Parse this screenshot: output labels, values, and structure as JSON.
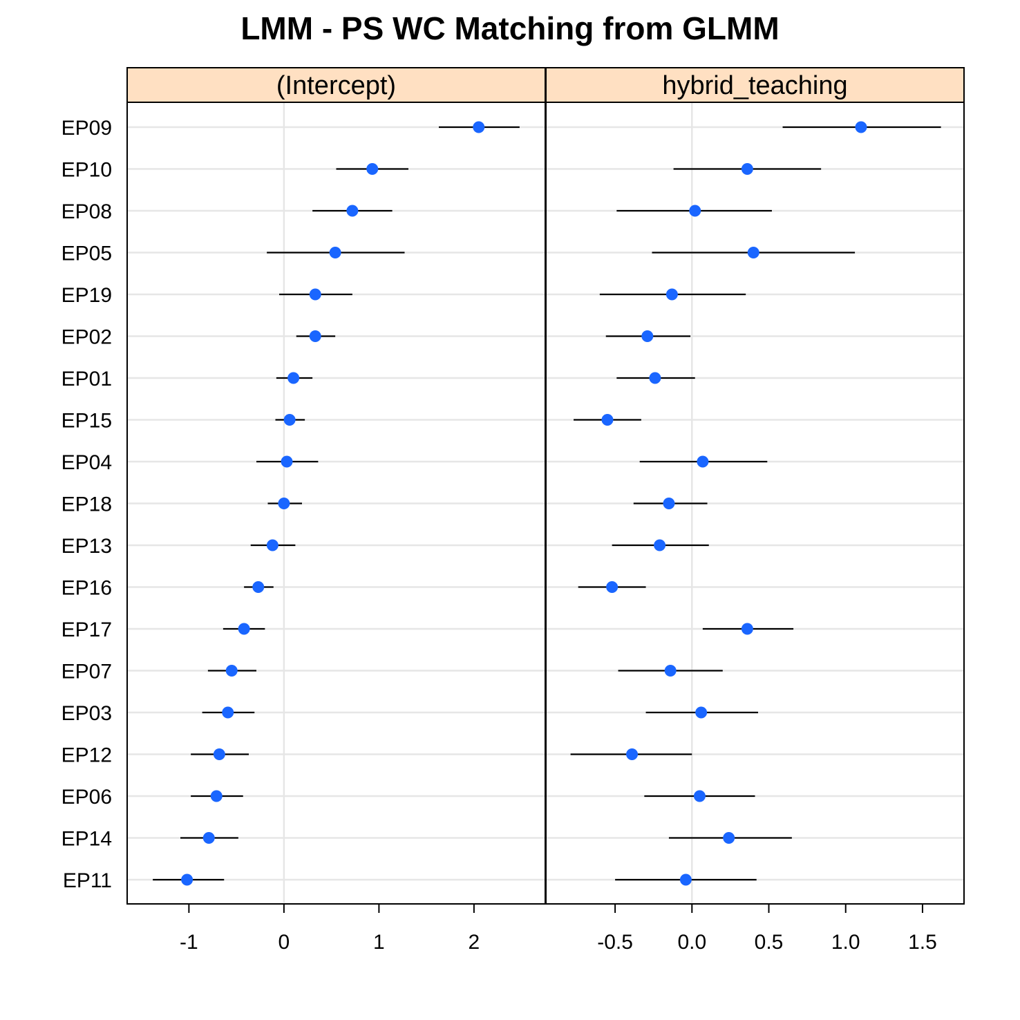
{
  "chart_data": {
    "type": "scatter",
    "subtype": "dotplot-with-error-bars",
    "title": "LMM - PS WC Matching from GLMM",
    "categories": [
      "EP09",
      "EP10",
      "EP08",
      "EP05",
      "EP19",
      "EP02",
      "EP01",
      "EP15",
      "EP04",
      "EP18",
      "EP13",
      "EP16",
      "EP17",
      "EP07",
      "EP03",
      "EP12",
      "EP06",
      "EP14",
      "EP11"
    ],
    "colors": {
      "point": "#1a66ff",
      "strip": "#ffe0c2",
      "grid": "#e6e6e6",
      "errorbar": "#000000"
    },
    "grid": true,
    "panels": [
      {
        "name": "(Intercept)",
        "xlim": [
          -1.65,
          2.75
        ],
        "ticks": [
          -1,
          0,
          1,
          2
        ],
        "tick_labels": [
          "-1",
          "0",
          "1",
          "2"
        ],
        "values": [
          2.05,
          0.93,
          0.72,
          0.54,
          0.33,
          0.33,
          0.1,
          0.06,
          0.03,
          0.0,
          -0.12,
          -0.27,
          -0.42,
          -0.55,
          -0.59,
          -0.68,
          -0.71,
          -0.79,
          -1.02
        ],
        "lower": [
          1.63,
          0.55,
          0.3,
          -0.18,
          -0.05,
          0.13,
          -0.08,
          -0.09,
          -0.29,
          -0.17,
          -0.35,
          -0.42,
          -0.64,
          -0.8,
          -0.86,
          -0.98,
          -0.98,
          -1.09,
          -1.38
        ],
        "upper": [
          2.48,
          1.31,
          1.14,
          1.27,
          0.72,
          0.54,
          0.3,
          0.22,
          0.36,
          0.19,
          0.12,
          -0.11,
          -0.2,
          -0.29,
          -0.31,
          -0.37,
          -0.43,
          -0.48,
          -0.63
        ]
      },
      {
        "name": "hybrid_teaching",
        "xlim": [
          -0.95,
          1.77
        ],
        "ticks": [
          -0.5,
          0.0,
          0.5,
          1.0,
          1.5
        ],
        "tick_labels": [
          "-0.5",
          "0.0",
          "0.5",
          "1.0",
          "1.5"
        ],
        "values": [
          1.1,
          0.36,
          0.02,
          0.4,
          -0.13,
          -0.29,
          -0.24,
          -0.55,
          0.07,
          -0.15,
          -0.21,
          -0.52,
          0.36,
          -0.14,
          0.06,
          -0.39,
          0.05,
          0.24,
          -0.04
        ],
        "lower": [
          0.59,
          -0.12,
          -0.49,
          -0.26,
          -0.6,
          -0.56,
          -0.49,
          -0.77,
          -0.34,
          -0.38,
          -0.52,
          -0.74,
          0.07,
          -0.48,
          -0.3,
          -0.79,
          -0.31,
          -0.15,
          -0.5
        ],
        "upper": [
          1.62,
          0.84,
          0.52,
          1.06,
          0.35,
          -0.01,
          0.02,
          -0.33,
          0.49,
          0.1,
          0.11,
          -0.3,
          0.66,
          0.2,
          0.43,
          0.0,
          0.41,
          0.65,
          0.42
        ]
      }
    ]
  }
}
